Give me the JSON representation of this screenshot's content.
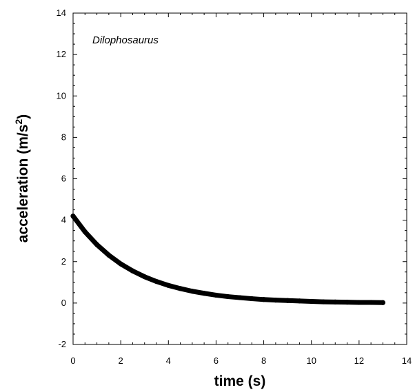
{
  "chart_data": {
    "type": "line",
    "title": "",
    "annotation": "Dilophosaurus",
    "xlabel": "time (s)",
    "ylabel_main": "acceleration (m/s",
    "ylabel_sup": "2",
    "ylabel_close": ")",
    "xlim": [
      0,
      14
    ],
    "ylim": [
      -2,
      14
    ],
    "xticks": [
      0,
      2,
      4,
      6,
      8,
      10,
      12,
      14
    ],
    "yticks": [
      -2,
      0,
      2,
      4,
      6,
      8,
      10,
      12,
      14
    ],
    "grid": false,
    "legend": "none",
    "series": [
      {
        "color": "#000000",
        "x": [
          0,
          0.5,
          1,
          1.5,
          2,
          2.5,
          3,
          3.5,
          4,
          4.5,
          5,
          5.5,
          6,
          6.5,
          7,
          7.5,
          8,
          8.5,
          9,
          9.5,
          10,
          10.5,
          11,
          11.5,
          12,
          12.5,
          13
        ],
        "y": [
          4.2,
          3.44,
          2.82,
          2.31,
          1.89,
          1.55,
          1.27,
          1.04,
          0.85,
          0.7,
          0.57,
          0.47,
          0.38,
          0.31,
          0.26,
          0.21,
          0.17,
          0.14,
          0.12,
          0.1,
          0.08,
          0.06,
          0.05,
          0.04,
          0.03,
          0.03,
          0.02
        ]
      }
    ]
  }
}
